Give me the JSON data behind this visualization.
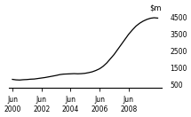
{
  "ylabel": "",
  "xlabel": "",
  "yticks": [
    500,
    1500,
    2500,
    3500,
    4500
  ],
  "ytick_labels": [
    "500",
    "1500",
    "2500",
    "3500",
    "4500"
  ],
  "xtick_positions": [
    0,
    8,
    16,
    24,
    32,
    40
  ],
  "xtick_labels": [
    "Jun\n2000",
    "Jun\n2002",
    "Jun\n2004",
    "Jun\n2006",
    "Jun\n2008",
    ""
  ],
  "ylim": [
    300,
    4800
  ],
  "xlim": [
    -1,
    41
  ],
  "line_color": "#000000",
  "background_color": "#ffffff",
  "x": [
    0,
    1,
    2,
    3,
    4,
    5,
    6,
    7,
    8,
    9,
    10,
    11,
    12,
    13,
    14,
    15,
    16,
    17,
    18,
    19,
    20,
    21,
    22,
    23,
    24,
    25,
    26,
    27,
    28,
    29,
    30,
    31,
    32,
    33,
    34,
    35,
    36,
    37,
    38,
    39,
    40
  ],
  "y": [
    820,
    790,
    780,
    800,
    810,
    830,
    840,
    870,
    900,
    930,
    970,
    1010,
    1050,
    1100,
    1130,
    1140,
    1150,
    1160,
    1150,
    1160,
    1180,
    1220,
    1270,
    1350,
    1450,
    1600,
    1800,
    2050,
    2300,
    2600,
    2900,
    3200,
    3500,
    3750,
    3980,
    4150,
    4280,
    4380,
    4450,
    4480,
    4460
  ]
}
